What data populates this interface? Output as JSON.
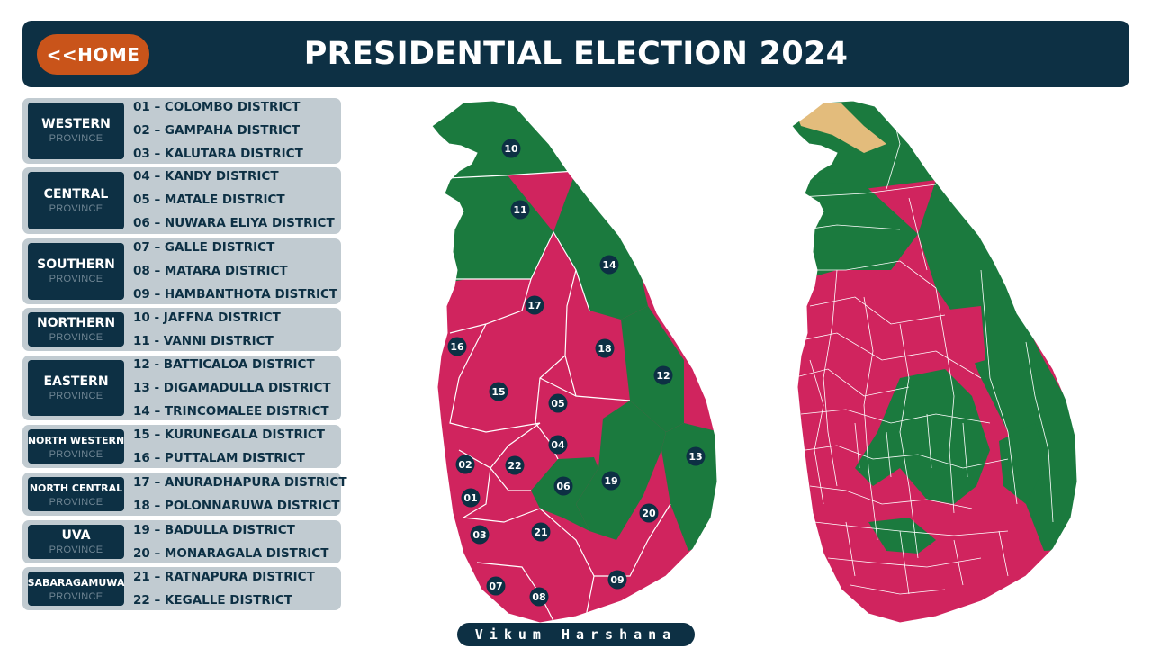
{
  "header": {
    "home_label": "<<HOME",
    "title": "PRESIDENTIAL ELECTION 2024"
  },
  "province_sub": "PROVINCE",
  "provinces": [
    {
      "name": "WESTERN",
      "districts": [
        "01 – COLOMBO DISTRICT",
        "02 – GAMPAHA DISTRICT",
        "03 – KALUTARA DISTRICT"
      ]
    },
    {
      "name": "CENTRAL",
      "districts": [
        "04 – KANDY DISTRICT",
        "05 – MATALE DISTRICT",
        "06 – NUWARA ELIYA DISTRICT"
      ]
    },
    {
      "name": "SOUTHERN",
      "districts": [
        "07 – GALLE DISTRICT",
        "08 – MATARA DISTRICT",
        "09 – HAMBANTHOTA DISTRICT"
      ]
    },
    {
      "name": "NORTHERN",
      "districts": [
        "10 - JAFFNA DISTRICT",
        "11 - VANNI DISTRICT"
      ]
    },
    {
      "name": "EASTERN",
      "districts": [
        "12 - BATTICALOA DISTRICT",
        "13 - DIGAMADULLA DISTRICT",
        "14 – TRINCOMALEE DISTRICT"
      ]
    },
    {
      "name": "NORTH WESTERN",
      "districts": [
        "15 – KURUNEGALA DISTRICT",
        "16 – PUTTALAM DISTRICT"
      ]
    },
    {
      "name": "NORTH CENTRAL",
      "districts": [
        "17 – ANURADHAPURA DISTRICT",
        "18 – POLONNARUWA DISTRICT"
      ]
    },
    {
      "name": "UVA",
      "districts": [
        "19 – BADULLA DISTRICT",
        "20 – MONARAGALA DISTRICT"
      ]
    },
    {
      "name": "SABARAGAMUWA",
      "districts": [
        "21 – RATNAPURA DISTRICT",
        "22 – KEGALLE DISTRICT"
      ]
    }
  ],
  "district_markers": [
    "01",
    "02",
    "03",
    "04",
    "05",
    "06",
    "07",
    "08",
    "09",
    "10",
    "11",
    "12",
    "13",
    "14",
    "15",
    "16",
    "17",
    "18",
    "19",
    "20",
    "21",
    "22"
  ],
  "colors": {
    "navy": "#0d3044",
    "green": "#1b7a3e",
    "magenta": "#d0245e",
    "orange": "#c9541a",
    "tan": "#e3bc7c",
    "panel": "#c1cbd1"
  },
  "credit": "Vikum Harshana"
}
